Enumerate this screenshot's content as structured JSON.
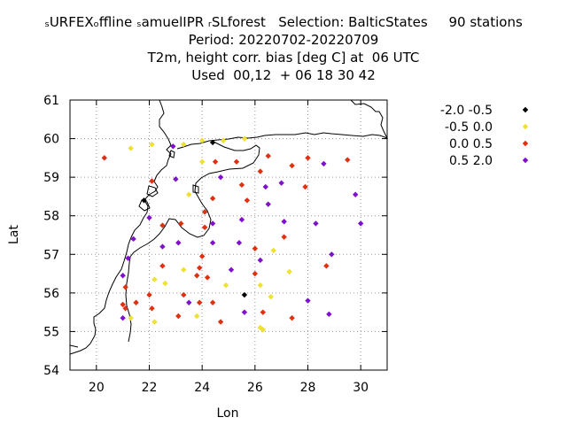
{
  "title": {
    "line1": "ₛURFEXₒffline ₛamuelIPR ᵣSLforest   Selection: BalticStates     90 stations",
    "line2": "Period: 20220702-20220709",
    "line3": "T2m, height corr. bias [deg C] at  06 UTC",
    "line4": "Used  00,12  + 06 18 30 42"
  },
  "chart_data": {
    "type": "scatter",
    "xlabel": "Lon",
    "ylabel": "Lat",
    "xlim": [
      19,
      31
    ],
    "ylim": [
      54,
      61
    ],
    "xticks": [
      "20",
      "22",
      "24",
      "26",
      "28",
      "30"
    ],
    "yticks": [
      "54",
      "55",
      "56",
      "57",
      "58",
      "59",
      "60",
      "61"
    ],
    "grid": true,
    "legend_position": "top-right, outside plot",
    "series": [
      {
        "name": "-2.0 -0.5",
        "color": "#000000",
        "points": [
          [
            24.4,
            59.9
          ],
          [
            21.8,
            58.4
          ],
          [
            25.6,
            55.95
          ]
        ]
      },
      {
        "name": "-0.5 0.0",
        "color": "#f0e030",
        "points": [
          [
            21.3,
            59.75
          ],
          [
            22.1,
            59.85
          ],
          [
            23.3,
            59.85
          ],
          [
            24.0,
            59.95
          ],
          [
            24.8,
            59.95
          ],
          [
            25.6,
            60.0
          ],
          [
            24.0,
            59.4
          ],
          [
            23.5,
            58.55
          ],
          [
            23.1,
            57.3
          ],
          [
            22.2,
            56.35
          ],
          [
            22.6,
            56.25
          ],
          [
            23.3,
            56.6
          ],
          [
            24.9,
            56.2
          ],
          [
            26.2,
            56.2
          ],
          [
            26.6,
            55.9
          ],
          [
            22.2,
            55.25
          ],
          [
            23.8,
            55.4
          ],
          [
            26.2,
            55.1
          ],
          [
            26.3,
            55.05
          ],
          [
            26.7,
            57.1
          ],
          [
            27.3,
            56.55
          ],
          [
            21.3,
            55.35
          ]
        ]
      },
      {
        "name": "0.0 0.5",
        "color": "#e03010",
        "points": [
          [
            20.3,
            59.5
          ],
          [
            22.1,
            58.9
          ],
          [
            24.5,
            59.4
          ],
          [
            25.3,
            59.4
          ],
          [
            26.5,
            59.55
          ],
          [
            27.4,
            59.3
          ],
          [
            28.0,
            59.5
          ],
          [
            29.5,
            59.45
          ],
          [
            26.2,
            59.15
          ],
          [
            25.5,
            58.8
          ],
          [
            27.9,
            58.75
          ],
          [
            24.1,
            58.1
          ],
          [
            24.4,
            58.45
          ],
          [
            25.7,
            58.4
          ],
          [
            23.2,
            57.8
          ],
          [
            22.5,
            57.75
          ],
          [
            24.1,
            57.7
          ],
          [
            26.0,
            57.15
          ],
          [
            27.1,
            57.45
          ],
          [
            22.5,
            56.7
          ],
          [
            24.0,
            56.95
          ],
          [
            23.9,
            56.65
          ],
          [
            23.8,
            56.45
          ],
          [
            24.2,
            56.4
          ],
          [
            26.0,
            56.5
          ],
          [
            22.0,
            55.95
          ],
          [
            23.3,
            55.95
          ],
          [
            21.1,
            56.15
          ],
          [
            21.5,
            55.75
          ],
          [
            23.9,
            55.75
          ],
          [
            24.4,
            55.75
          ],
          [
            21.0,
            55.7
          ],
          [
            22.1,
            55.6
          ],
          [
            21.1,
            55.6
          ],
          [
            26.3,
            55.5
          ],
          [
            27.4,
            55.35
          ],
          [
            23.1,
            55.4
          ],
          [
            24.7,
            55.25
          ],
          [
            28.7,
            56.7
          ]
        ]
      },
      {
        "name": "0.5 2.0",
        "color": "#8010d0",
        "points": [
          [
            22.9,
            59.8
          ],
          [
            22.0,
            57.95
          ],
          [
            23.0,
            58.95
          ],
          [
            24.7,
            59.0
          ],
          [
            26.4,
            58.75
          ],
          [
            27.0,
            58.85
          ],
          [
            28.6,
            59.35
          ],
          [
            29.8,
            58.55
          ],
          [
            24.4,
            57.8
          ],
          [
            25.5,
            57.9
          ],
          [
            26.5,
            58.3
          ],
          [
            27.1,
            57.85
          ],
          [
            28.3,
            57.8
          ],
          [
            30.0,
            57.8
          ],
          [
            21.4,
            57.4
          ],
          [
            22.5,
            57.2
          ],
          [
            23.1,
            57.3
          ],
          [
            24.4,
            57.3
          ],
          [
            25.4,
            57.3
          ],
          [
            28.9,
            57.0
          ],
          [
            21.2,
            56.9
          ],
          [
            26.2,
            56.85
          ],
          [
            25.1,
            56.6
          ],
          [
            21.0,
            56.45
          ],
          [
            23.5,
            55.75
          ],
          [
            28.0,
            55.8
          ],
          [
            25.6,
            55.5
          ],
          [
            28.8,
            55.45
          ],
          [
            21.0,
            55.35
          ]
        ]
      }
    ]
  }
}
